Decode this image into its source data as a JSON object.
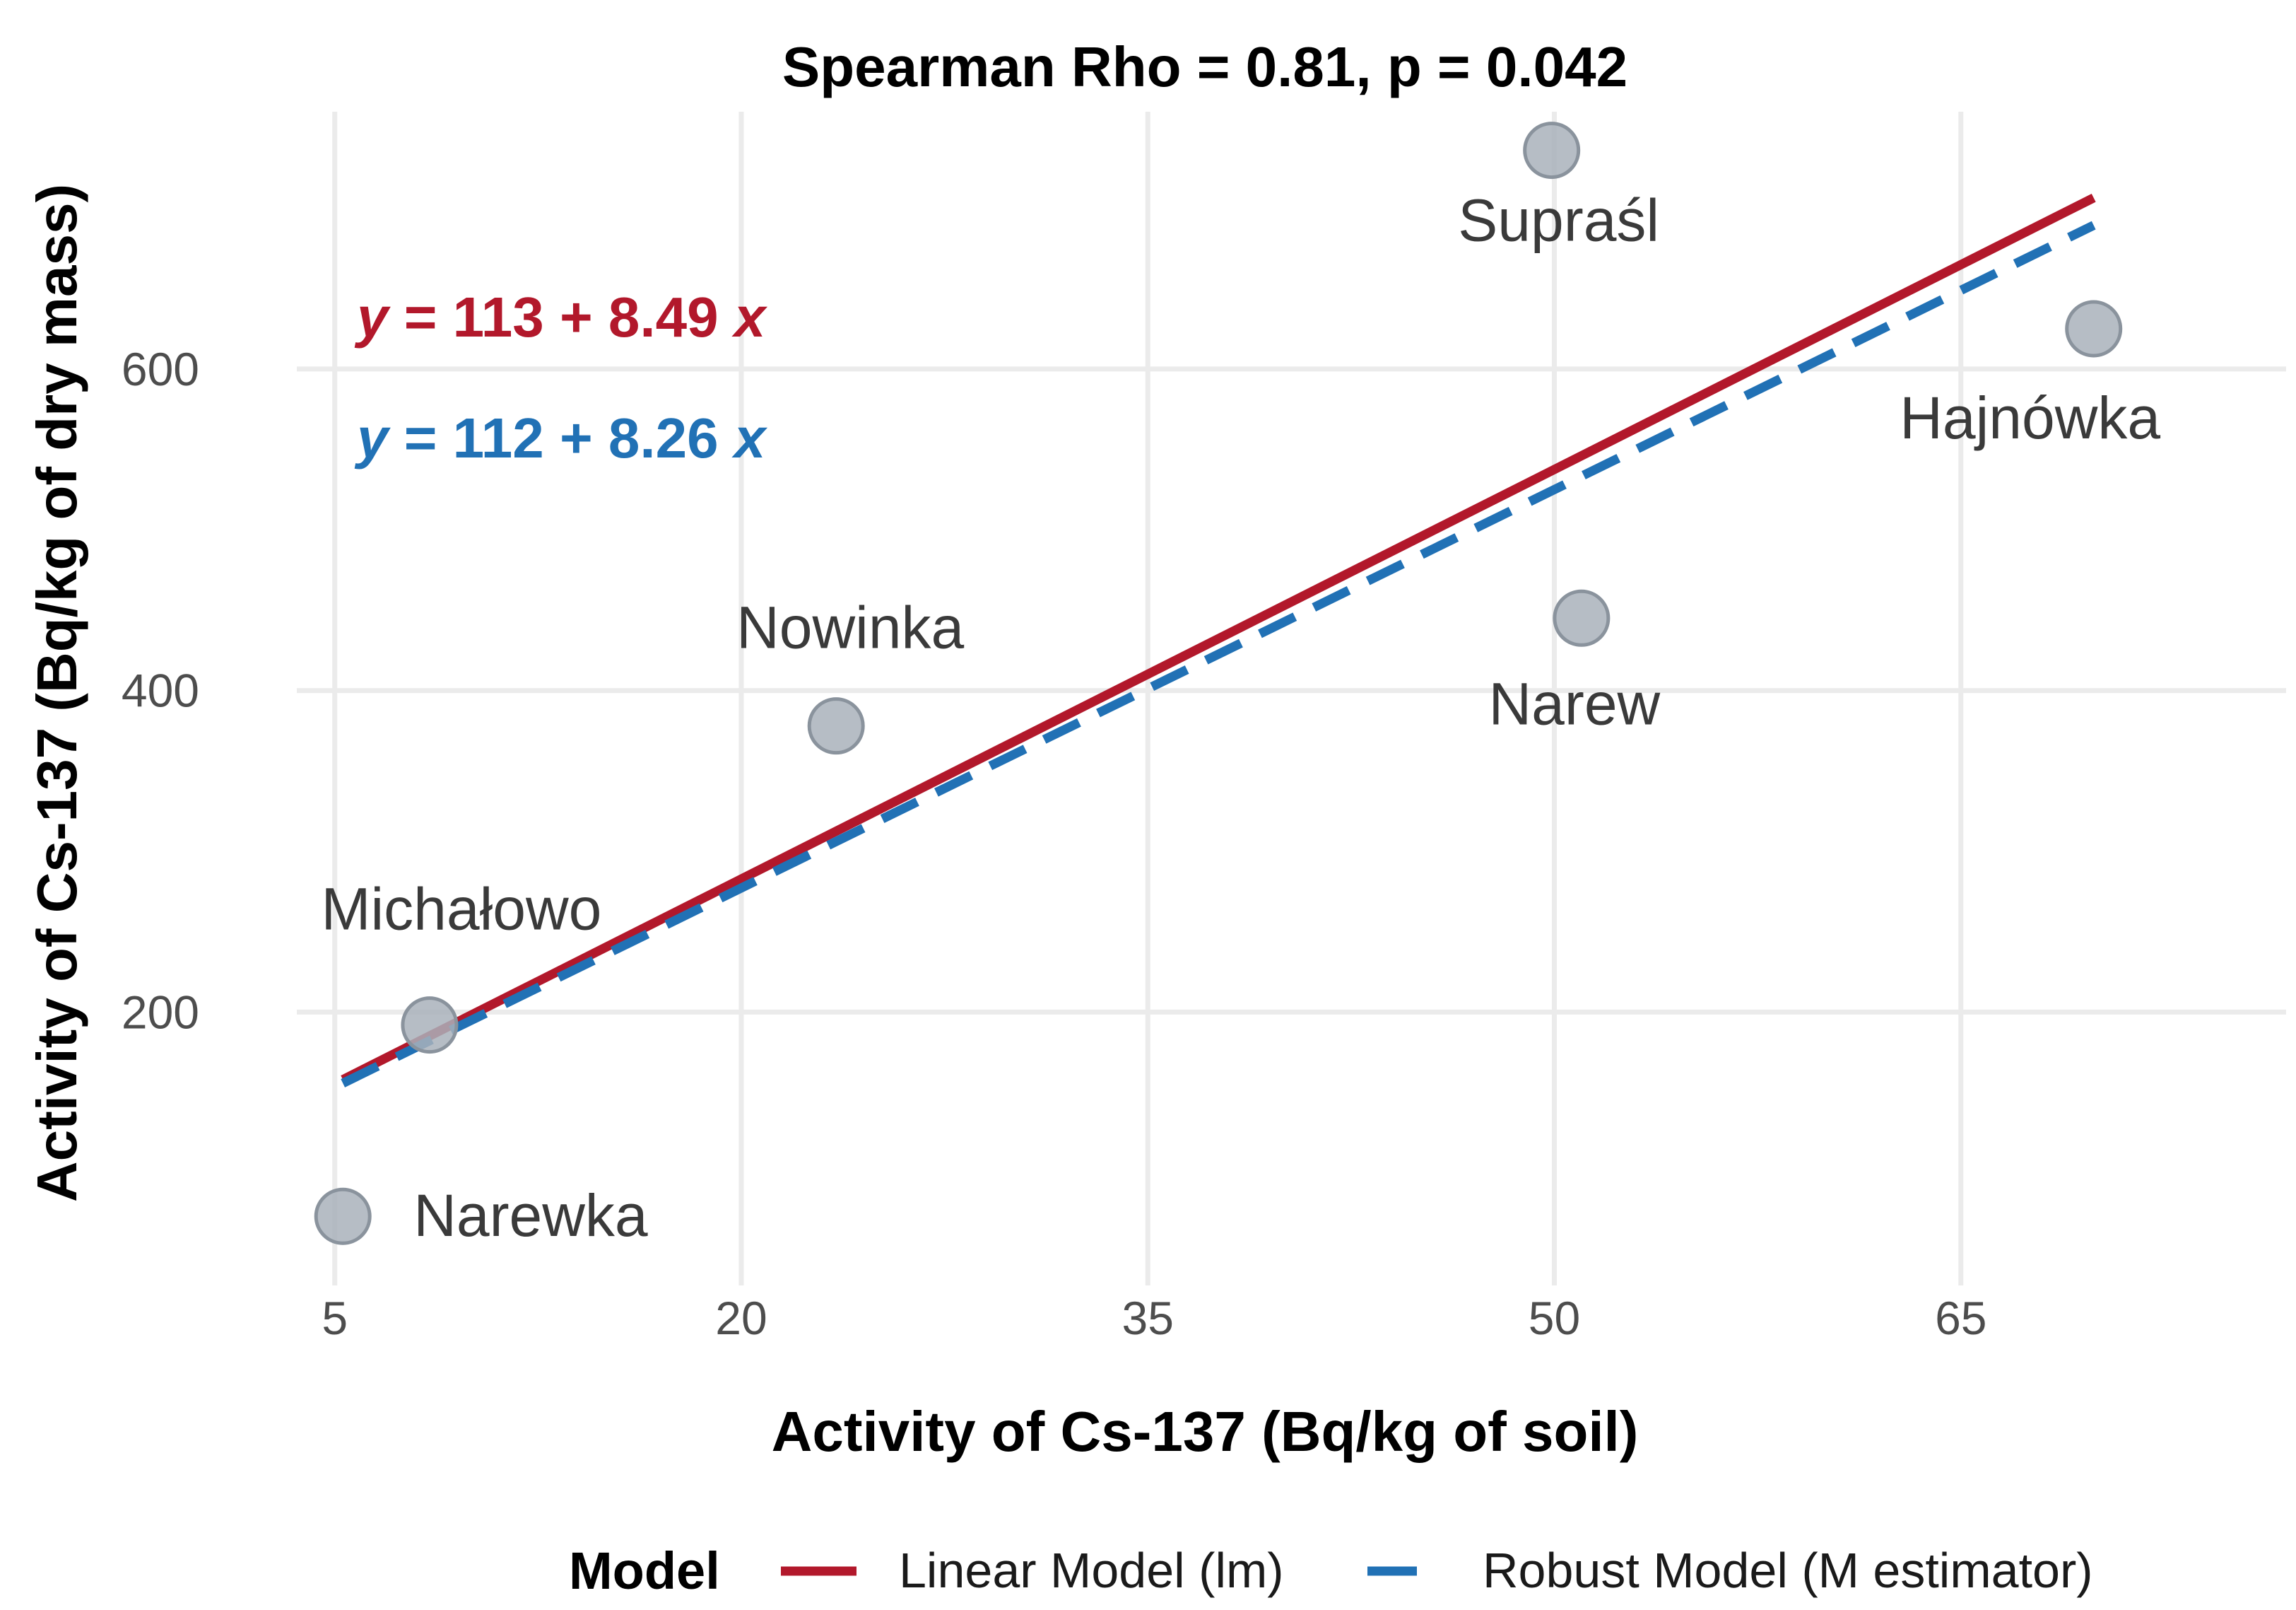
{
  "chart_data": {
    "type": "scatter",
    "title": "Spearman Rho = 0.81, p = 0.042",
    "xlabel": "Activity of Cs-137 (Bq/kg of soil)",
    "ylabel": "Activity of Cs-137 (Bq/kg of dry mass)",
    "xlim": [
      3.6,
      77
    ],
    "ylim": [
      30,
      760
    ],
    "xticks": [
      5,
      20,
      35,
      50,
      65
    ],
    "yticks": [
      200,
      400,
      600
    ],
    "grid": true,
    "points": [
      {
        "name": "Narewka",
        "x": 5.3,
        "y": 73
      },
      {
        "name": "Michałowo",
        "x": 8.5,
        "y": 192
      },
      {
        "name": "Nowinka",
        "x": 23.5,
        "y": 378
      },
      {
        "name": "Supraśl",
        "x": 49.9,
        "y": 736
      },
      {
        "name": "Narew",
        "x": 51.0,
        "y": 445
      },
      {
        "name": "Hajnówka",
        "x": 69.9,
        "y": 625
      }
    ],
    "series": [
      {
        "name": "Linear Model (lm)",
        "intercept": 113,
        "slope": 8.49,
        "x_range": [
          5.3,
          69.9
        ],
        "color": "#b2182b",
        "dash": "solid",
        "equation": {
          "lhs": "y",
          "eq": " = ",
          "coef": "113 + 8.49 ",
          "var": "x"
        }
      },
      {
        "name": "Robust Model (M estimator)",
        "intercept": 112,
        "slope": 8.26,
        "x_range": [
          5.3,
          69.9
        ],
        "color": "#2171b5",
        "dash": "dashed",
        "equation": {
          "lhs": "y",
          "eq": " = ",
          "coef": "112 + 8.26 ",
          "var": "x"
        }
      }
    ],
    "legend": {
      "title": "Model",
      "position": "bottom"
    }
  }
}
